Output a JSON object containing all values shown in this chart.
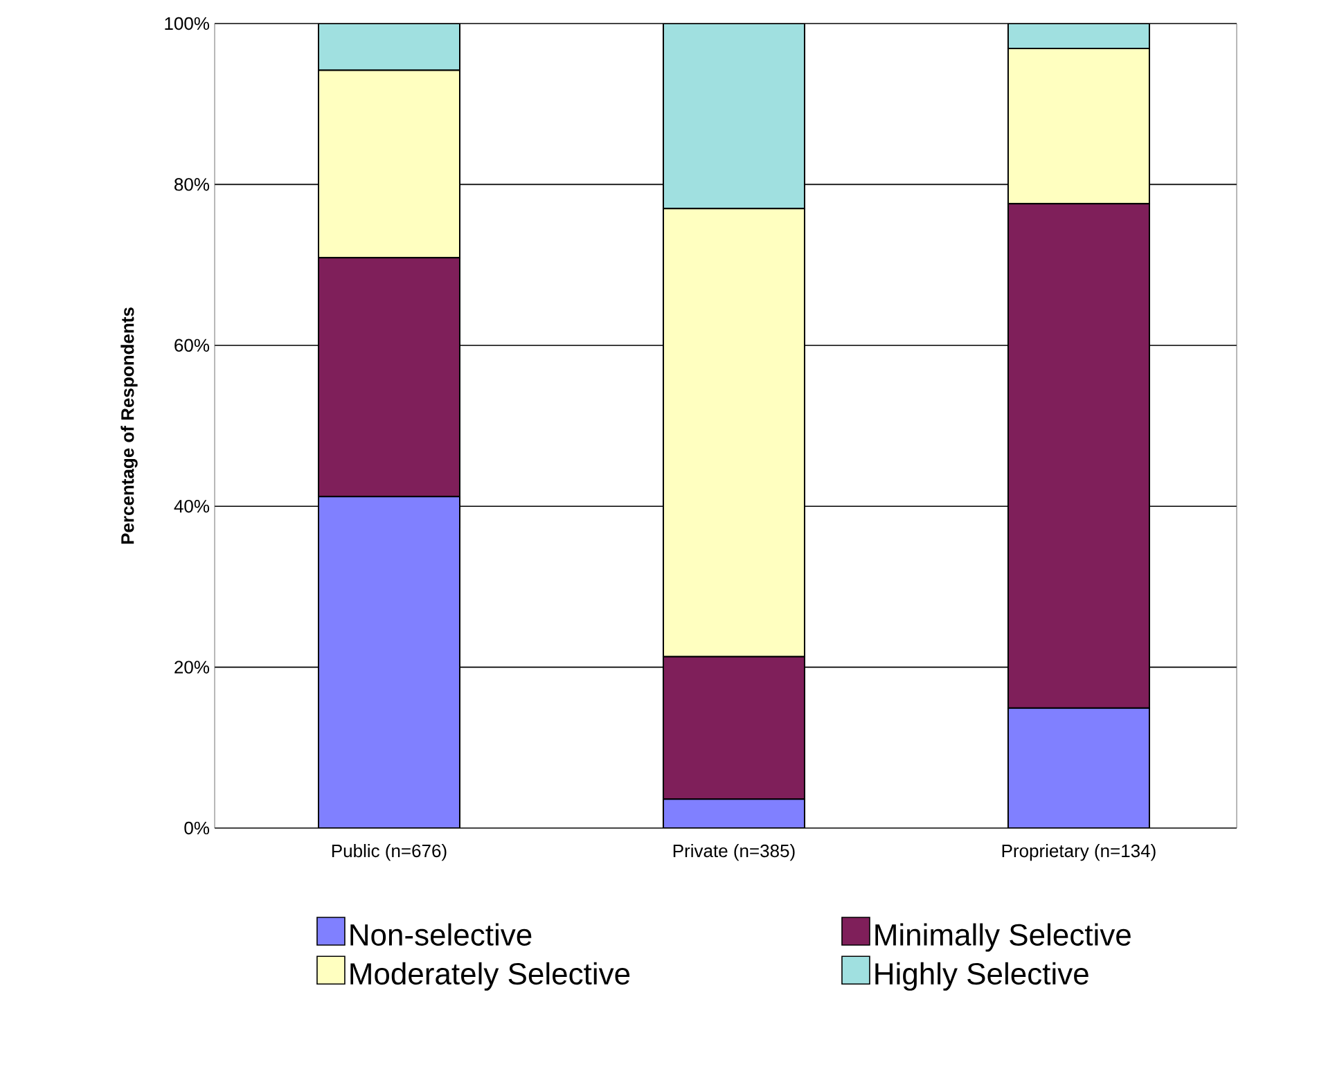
{
  "chart_data": {
    "type": "bar",
    "stacked": true,
    "ylabel": "Percentage of Respondents",
    "categories": [
      "Public (n=676)",
      "Private (n=385)",
      "Proprietary (n=134)"
    ],
    "series": [
      {
        "name": "Non-selective",
        "color": "#8080ff",
        "values": [
          41.2,
          3.6,
          14.9
        ]
      },
      {
        "name": "Minimally Selective",
        "color": "#7f1f5a",
        "values": [
          29.7,
          17.7,
          62.7
        ]
      },
      {
        "name": "Moderately Selective",
        "color": "#ffffc0",
        "values": [
          23.3,
          55.7,
          19.3
        ]
      },
      {
        "name": "Highly Selective",
        "color": "#a0e0e0",
        "values": [
          5.8,
          23.0,
          3.1
        ]
      }
    ],
    "ylim": [
      0,
      100
    ],
    "yticks": [
      {
        "value": 0,
        "label": "0%"
      },
      {
        "value": 20,
        "label": "20%"
      },
      {
        "value": 40,
        "label": "40%"
      },
      {
        "value": 60,
        "label": "60%"
      },
      {
        "value": 80,
        "label": "80%"
      },
      {
        "value": 100,
        "label": "100%"
      }
    ],
    "grid": "y",
    "legend": "bottom"
  }
}
